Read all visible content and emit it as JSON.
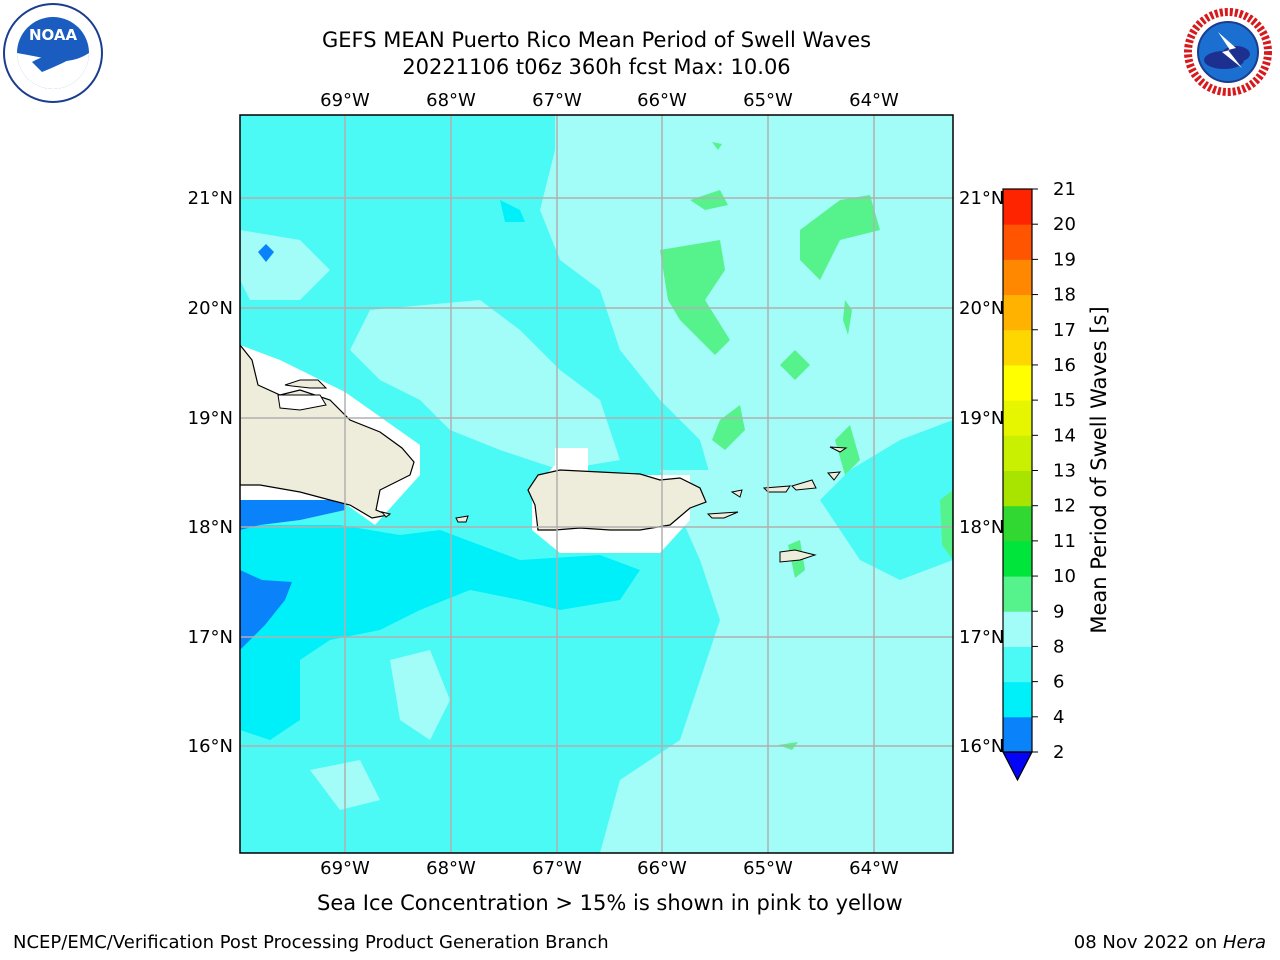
{
  "title": {
    "line1": "GEFS MEAN Puerto Rico Mean Period of Swell Waves",
    "line2": "20221106 t06z 360h fcst   Max: 10.06"
  },
  "map": {
    "lon_labels": [
      "69°W",
      "68°W",
      "67°W",
      "66°W",
      "65°W",
      "64°W"
    ],
    "lat_labels": [
      "21°N",
      "20°N",
      "19°N",
      "18°N",
      "17°N",
      "16°N"
    ],
    "ocean_base_color": "#4cfaf5",
    "land_color": "#eeecdb"
  },
  "colorbar": {
    "label": "Mean Period of Swell Waves [s]",
    "ticks": [
      "2",
      "4",
      "6",
      "8",
      "9",
      "10",
      "11",
      "12",
      "13",
      "14",
      "15",
      "16",
      "17",
      "18",
      "19",
      "20",
      "21"
    ],
    "colors": [
      "#0a82fa",
      "#00f0fa",
      "#4cfaf5",
      "#a2fdf8",
      "#56f28c",
      "#00e53c",
      "#32d832",
      "#a8e400",
      "#c8f000",
      "#e6f500",
      "#ffff00",
      "#ffd700",
      "#ffb200",
      "#ff8800",
      "#ff5500",
      "#ff2400"
    ],
    "under_color": "#0505f5"
  },
  "footnote": "Sea Ice Concentration > 15% is shown in pink to yellow",
  "footer": {
    "left": "NCEP/EMC/Verification Post Processing Product Generation Branch",
    "right_prefix": "08 Nov 2022 on ",
    "right_machine": "Hera"
  },
  "logos": {
    "noaa_text": "NOAA",
    "nws_text": "NATIONAL WEATHER SERVICE"
  }
}
